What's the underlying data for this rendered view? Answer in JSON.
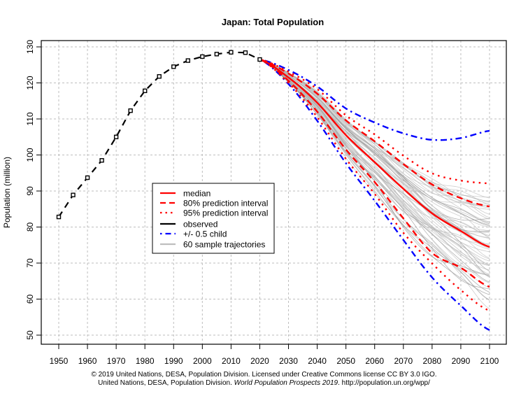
{
  "chart_data": {
    "type": "line",
    "title": "Japan: Total Population",
    "xlabel": "",
    "ylabel": "Population (million)",
    "xlim": [
      1944,
      2106
    ],
    "ylim": [
      47.5,
      132
    ],
    "x_ticks": [
      1950,
      1960,
      1970,
      1980,
      1990,
      2000,
      2010,
      2020,
      2030,
      2040,
      2050,
      2060,
      2070,
      2080,
      2090,
      2100
    ],
    "y_ticks": [
      50,
      60,
      70,
      80,
      90,
      100,
      110,
      120,
      130
    ],
    "grid": true,
    "legend_placement": "center-left",
    "colors": {
      "median": "#ff0000",
      "pi80": "#ff0000",
      "pi95": "#ff0000",
      "observed": "#000000",
      "half_child": "#0000ff",
      "trajectories": "#bebebe",
      "grid": "#bebebe"
    },
    "legend": [
      {
        "key": "median",
        "label": "median",
        "style": "solid"
      },
      {
        "key": "pi80",
        "label": "80% prediction interval",
        "style": "dashed"
      },
      {
        "key": "pi95",
        "label": "95% prediction interval",
        "style": "dotted"
      },
      {
        "key": "observed",
        "label": "observed",
        "style": "solid"
      },
      {
        "key": "half_child",
        "label": "+/- 0.5 child",
        "style": "dotdash"
      },
      {
        "key": "trajectories",
        "label": "60 sample trajectories",
        "style": "solid"
      }
    ],
    "series": [
      {
        "name": "observed",
        "x": [
          1950,
          1955,
          1960,
          1965,
          1970,
          1975,
          1980,
          1985,
          1990,
          1995,
          2000,
          2005,
          2010,
          2015,
          2020
        ],
        "values": [
          82.8,
          88.9,
          93.7,
          98.5,
          105.0,
          112.3,
          117.8,
          121.8,
          124.5,
          126.2,
          127.3,
          128.0,
          128.5,
          128.4,
          126.5
        ]
      },
      {
        "name": "median",
        "x": [
          2020,
          2030,
          2040,
          2050,
          2060,
          2070,
          2080,
          2090,
          2100
        ],
        "values": [
          126.5,
          121.5,
          114.5,
          105.5,
          98.0,
          90.6,
          83.8,
          78.9,
          74.5
        ]
      },
      {
        "name": "80% upper",
        "x": [
          2020,
          2030,
          2040,
          2050,
          2060,
          2070,
          2080,
          2090,
          2100
        ],
        "values": [
          126.5,
          122.6,
          117.0,
          109.6,
          103.8,
          97.5,
          91.8,
          88.0,
          85.7
        ]
      },
      {
        "name": "80% lower",
        "x": [
          2020,
          2030,
          2040,
          2050,
          2060,
          2070,
          2080,
          2090,
          2100
        ],
        "values": [
          126.5,
          120.6,
          112.0,
          101.5,
          92.5,
          82.4,
          72.8,
          68.7,
          63.4
        ]
      },
      {
        "name": "95% upper",
        "x": [
          2020,
          2030,
          2040,
          2050,
          2060,
          2070,
          2080,
          2090,
          2100
        ],
        "values": [
          126.5,
          123.1,
          118.3,
          111.0,
          105.7,
          99.8,
          94.9,
          92.9,
          92.1
        ]
      },
      {
        "name": "95% lower",
        "x": [
          2020,
          2030,
          2040,
          2050,
          2060,
          2070,
          2080,
          2090,
          2100
        ],
        "values": [
          126.5,
          120.0,
          110.5,
          98.9,
          89.2,
          78.4,
          69.9,
          62.5,
          56.8
        ]
      },
      {
        "name": "+0.5 child",
        "x": [
          2020,
          2030,
          2040,
          2050,
          2060,
          2070,
          2080,
          2090,
          2100
        ],
        "values": [
          126.5,
          123.6,
          119.0,
          112.9,
          109.0,
          106.0,
          104.2,
          104.7,
          106.7
        ]
      },
      {
        "name": "-0.5 child",
        "x": [
          2020,
          2030,
          2040,
          2050,
          2060,
          2070,
          2080,
          2090,
          2100
        ],
        "values": [
          126.5,
          119.7,
          109.5,
          97.7,
          87.3,
          76.4,
          66.0,
          58.2,
          51.4
        ]
      }
    ],
    "trajectories_count": 60,
    "trajectories_range_2100": [
      57.5,
      91.5
    ]
  },
  "footer": {
    "line1": "© 2019 United Nations, DESA, Population Division. Licensed under Creative Commons license CC BY 3.0 IGO.",
    "line2_prefix": "United Nations, DESA, Population Division. ",
    "line2_italic": "World Population Prospects 2019",
    "line2_suffix": ". http://population.un.org/wpp/"
  }
}
